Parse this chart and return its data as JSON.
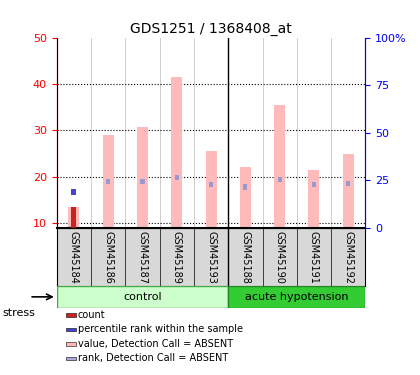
{
  "title": "GDS1251 / 1368408_at",
  "samples": [
    "GSM45184",
    "GSM45186",
    "GSM45187",
    "GSM45189",
    "GSM45193",
    "GSM45188",
    "GSM45190",
    "GSM45191",
    "GSM45192"
  ],
  "groups": [
    {
      "name": "control",
      "indices": [
        0,
        1,
        2,
        3,
        4
      ],
      "color": "#ccffcc",
      "edge_color": "#44aa44"
    },
    {
      "name": "acute hypotension",
      "indices": [
        5,
        6,
        7,
        8
      ],
      "color": "#33cc33",
      "edge_color": "#228822",
      "text_color": "black"
    }
  ],
  "stress_label": "stress",
  "ylim_left": [
    9,
    50
  ],
  "ylim_right": [
    0,
    100
  ],
  "yticks_left": [
    10,
    20,
    30,
    40,
    50
  ],
  "yticks_right": [
    0,
    25,
    50,
    75,
    100
  ],
  "ytick_labels_right": [
    "0",
    "25",
    "50",
    "75",
    "100%"
  ],
  "pink_bar_values": [
    13.5,
    29.0,
    30.8,
    41.5,
    25.5,
    22.2,
    35.5,
    21.5,
    25.0
  ],
  "blue_bar_values": [
    19.0,
    24.5,
    24.5,
    26.5,
    23.0,
    21.5,
    25.5,
    23.0,
    23.5
  ],
  "red_bar_value": 13.5,
  "red_bar_index": 0,
  "blue_dot_value": 19.0,
  "blue_dot_index": 0,
  "red_bar_color": "#cc2222",
  "pink_bar_color": "#ffbbbb",
  "blue_bar_color": "#9999cc",
  "blue_dot_color": "#4444cc",
  "axis_bg": "#d8d8d8",
  "plot_bg": "#ffffff",
  "label_fontsize": 7,
  "title_fontsize": 10,
  "tick_fontsize": 8,
  "legend_items": [
    {
      "label": "count",
      "color": "#cc2222"
    },
    {
      "label": "percentile rank within the sample",
      "color": "#4444cc"
    },
    {
      "label": "value, Detection Call = ABSENT",
      "color": "#ffbbbb"
    },
    {
      "label": "rank, Detection Call = ABSENT",
      "color": "#aaaadd"
    }
  ]
}
